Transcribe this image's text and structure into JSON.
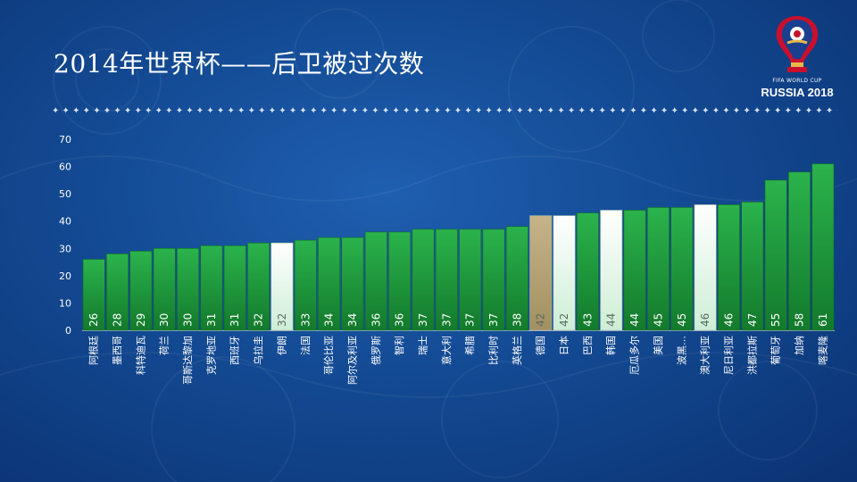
{
  "slide": {
    "title": "2014年世界杯——后卫被过次数",
    "logo_line1": "FIFA WORLD CUP",
    "logo_line2": "RUSSIA 2018",
    "divider_glyph": "✦"
  },
  "colors": {
    "background": "#134a93",
    "bar_default": "#1e9a3c",
    "bar_highlight_white": "#e6f5e9",
    "bar_highlight_gold": "#b8a77a",
    "text": "#ffffff"
  },
  "chart_data": {
    "type": "bar",
    "title": "",
    "xlabel": "",
    "ylabel": "",
    "ylim": [
      0,
      70
    ],
    "yticks": [
      0,
      10,
      20,
      30,
      40,
      50,
      60,
      70
    ],
    "grid": false,
    "legend": "none",
    "categories": [
      "阿根廷",
      "墨西哥",
      "科特迪瓦",
      "荷兰",
      "哥斯达黎加",
      "克罗地亚",
      "西班牙",
      "乌拉圭",
      "伊朗",
      "法国",
      "哥伦比亚",
      "阿尔及利亚",
      "俄罗斯",
      "智利",
      "瑞士",
      "意大利",
      "希腊",
      "比利时",
      "英格兰",
      "德国",
      "日本",
      "巴西",
      "韩国",
      "厄瓜多尔",
      "美国",
      "波黑…",
      "澳大利亚",
      "尼日利亚",
      "洪都拉斯",
      "葡萄牙",
      "加纳",
      "喀麦隆"
    ],
    "values": [
      26,
      28,
      29,
      30,
      30,
      31,
      31,
      32,
      32,
      33,
      34,
      34,
      36,
      36,
      37,
      37,
      37,
      37,
      38,
      42,
      42,
      43,
      44,
      44,
      45,
      45,
      46,
      46,
      47,
      55,
      58,
      61
    ],
    "bar_styles": [
      "green",
      "green",
      "green",
      "green",
      "green",
      "green",
      "green",
      "green",
      "white",
      "green",
      "green",
      "green",
      "green",
      "green",
      "green",
      "green",
      "green",
      "green",
      "green",
      "gold",
      "white",
      "green",
      "white",
      "green",
      "green",
      "green",
      "white",
      "green",
      "green",
      "green",
      "green",
      "green"
    ]
  }
}
